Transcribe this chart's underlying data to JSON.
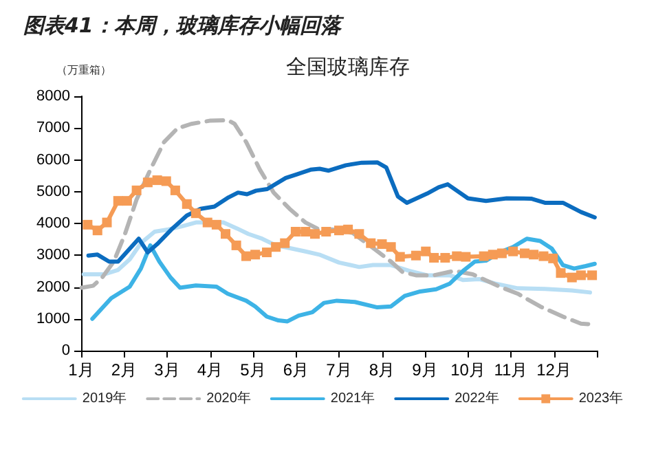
{
  "chart_data": {
    "type": "line",
    "title": "图表41：本周，玻璃库存小幅回落",
    "subtitle": "全国玻璃库存",
    "ylabel": "（万重箱）",
    "xlim": [
      1,
      13
    ],
    "xticks": [
      {
        "value": 1,
        "label": "1月"
      },
      {
        "value": 2,
        "label": "2月"
      },
      {
        "value": 3,
        "label": "3月"
      },
      {
        "value": 4,
        "label": "4月"
      },
      {
        "value": 5,
        "label": "5月"
      },
      {
        "value": 6,
        "label": "6月"
      },
      {
        "value": 7,
        "label": "7月"
      },
      {
        "value": 8,
        "label": "8月"
      },
      {
        "value": 9,
        "label": "9月"
      },
      {
        "value": 10,
        "label": "10月"
      },
      {
        "value": 11,
        "label": "11月"
      },
      {
        "value": 12,
        "label": "12月"
      },
      {
        "value": 13,
        "label": null
      }
    ],
    "ylim": [
      0,
      8000
    ],
    "yticks": [
      0,
      1000,
      2000,
      3000,
      4000,
      5000,
      6000,
      7000,
      8000
    ],
    "grid": false,
    "legend": "bottom",
    "marker": "none",
    "line_style": "solid",
    "series": [
      {
        "name": "2019年",
        "color": "#b8def4",
        "x": [
          1.06,
          1.54,
          1.86,
          2.13,
          2.39,
          2.71,
          3.03,
          3.35,
          3.67,
          4.31,
          4.63,
          4.89,
          5.21,
          5.53,
          5.9,
          6.22,
          6.54,
          7.0,
          7.47,
          7.79,
          8.21,
          8.63,
          9.05,
          9.58,
          9.89,
          10.26,
          10.63,
          11.16,
          11.79,
          12.42,
          12.84
        ],
        "values": [
          2400,
          2400,
          2540,
          2870,
          3380,
          3740,
          3810,
          3910,
          4030,
          4030,
          3840,
          3670,
          3520,
          3310,
          3210,
          3120,
          3020,
          2770,
          2630,
          2690,
          2690,
          2510,
          2370,
          2370,
          2220,
          2250,
          2110,
          1960,
          1940,
          1890,
          1830
        ]
      },
      {
        "name": "2020年",
        "color": "#b4b4b4",
        "line_style": "dashed",
        "x": [
          1.01,
          1.28,
          1.49,
          1.76,
          2.02,
          2.29,
          2.61,
          2.93,
          3.24,
          3.56,
          3.99,
          4.41,
          4.57,
          4.84,
          5.16,
          5.48,
          5.85,
          6.22,
          6.54,
          6.84,
          7.32,
          7.79,
          8.21,
          8.47,
          8.79,
          9.21,
          9.68,
          10.11,
          10.74,
          11.16,
          11.68,
          12.21,
          12.63,
          12.95
        ],
        "values": [
          1980,
          2040,
          2300,
          2800,
          3670,
          4750,
          5690,
          6560,
          6990,
          7130,
          7230,
          7250,
          7130,
          6560,
          5690,
          4970,
          4460,
          4030,
          3810,
          3810,
          3700,
          3230,
          2800,
          2480,
          2370,
          2370,
          2510,
          2400,
          2010,
          1790,
          1390,
          1070,
          850,
          820
        ]
      },
      {
        "name": "2021年",
        "color": "#3db3e6",
        "x": [
          1.26,
          1.7,
          2.13,
          2.39,
          2.61,
          2.82,
          3.08,
          3.3,
          3.67,
          4.15,
          4.41,
          4.84,
          5.05,
          5.32,
          5.59,
          5.8,
          6.06,
          6.38,
          6.65,
          6.95,
          7.37,
          7.89,
          8.21,
          8.53,
          8.89,
          9.26,
          9.58,
          9.89,
          10.16,
          10.42,
          10.74,
          11.05,
          11.37,
          11.68,
          11.95,
          12.21,
          12.47,
          12.74,
          12.95
        ],
        "values": [
          1000,
          1650,
          2010,
          2580,
          3310,
          2800,
          2300,
          1980,
          2050,
          2010,
          1790,
          1570,
          1390,
          1070,
          950,
          920,
          1100,
          1210,
          1500,
          1570,
          1530,
          1360,
          1390,
          1720,
          1860,
          1930,
          2110,
          2510,
          2800,
          2830,
          3090,
          3260,
          3520,
          3450,
          3210,
          2690,
          2580,
          2660,
          2730
        ]
      },
      {
        "name": "2022年",
        "color": "#0b6cbf",
        "x": [
          1.17,
          1.38,
          1.65,
          1.86,
          2.34,
          2.55,
          2.77,
          3.1,
          3.46,
          3.78,
          4.1,
          4.43,
          4.65,
          4.86,
          5.07,
          5.33,
          5.76,
          6.03,
          6.34,
          6.55,
          6.76,
          7.16,
          7.53,
          7.89,
          8.1,
          8.37,
          8.58,
          9.05,
          9.32,
          9.53,
          10.0,
          10.42,
          10.9,
          11.47,
          11.79,
          12.21,
          12.63,
          12.95
        ],
        "values": [
          2990,
          3020,
          2800,
          2800,
          3520,
          3090,
          3350,
          3810,
          4250,
          4460,
          4530,
          4820,
          4970,
          4920,
          5030,
          5080,
          5430,
          5550,
          5690,
          5720,
          5660,
          5830,
          5910,
          5920,
          5760,
          4850,
          4650,
          4940,
          5140,
          5230,
          4790,
          4710,
          4790,
          4780,
          4650,
          4650,
          4360,
          4190
        ]
      },
      {
        "name": "2023年",
        "color": "#f59b55",
        "marker": "square",
        "x": [
          1.15,
          1.38,
          1.6,
          1.86,
          2.07,
          2.29,
          2.55,
          2.77,
          2.98,
          3.19,
          3.46,
          3.67,
          3.94,
          4.15,
          4.36,
          4.61,
          4.84,
          5.05,
          5.32,
          5.53,
          5.74,
          5.99,
          6.22,
          6.44,
          6.7,
          7.0,
          7.21,
          7.47,
          7.74,
          8.0,
          8.21,
          8.42,
          8.79,
          9.02,
          9.21,
          9.47,
          9.74,
          9.95,
          10.37,
          10.58,
          10.79,
          11.05,
          11.32,
          11.53,
          11.76,
          11.98,
          12.16,
          12.42,
          12.63,
          12.89
        ],
        "values": [
          3960,
          3780,
          4030,
          4710,
          4710,
          5040,
          5290,
          5360,
          5330,
          5040,
          4610,
          4320,
          4030,
          3960,
          3670,
          3310,
          2970,
          3020,
          3090,
          3260,
          3380,
          3740,
          3740,
          3670,
          3740,
          3780,
          3810,
          3670,
          3380,
          3350,
          3260,
          2950,
          2990,
          3120,
          2920,
          2920,
          2970,
          2950,
          2970,
          3020,
          3060,
          3120,
          3060,
          3020,
          2970,
          2900,
          2440,
          2300,
          2370,
          2370
        ]
      }
    ]
  }
}
